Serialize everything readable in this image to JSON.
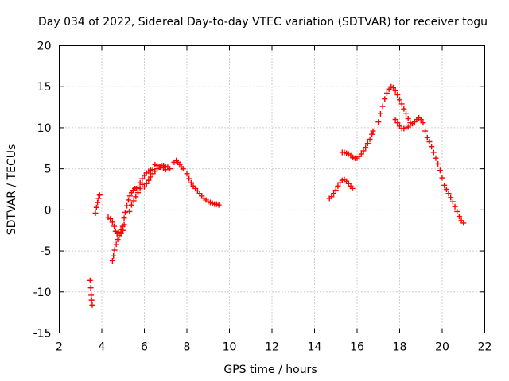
{
  "chart_data": {
    "type": "scatter",
    "title": "Day 034 of 2022, Sidereal Day-to-day VTEC variation (SDTVAR) for receiver togu",
    "xlabel": "GPS time / hours",
    "ylabel": "SDTVAR / TECUs",
    "xlim": [
      2,
      22
    ],
    "ylim": [
      -15,
      20
    ],
    "xticks": [
      2,
      4,
      6,
      8,
      10,
      12,
      14,
      16,
      18,
      20,
      22
    ],
    "yticks": [
      -15,
      -10,
      -5,
      0,
      5,
      10,
      15,
      20
    ],
    "xtick_labels": [
      "2",
      "4",
      "6",
      "8",
      "10",
      "12",
      "14",
      "16",
      "18",
      "20",
      "22"
    ],
    "ytick_labels": [
      "-15",
      "-10",
      "-5",
      "0",
      "5",
      "10",
      "15",
      "20"
    ],
    "grid": true,
    "marker": "+",
    "color": "#ff0000",
    "series": [
      {
        "name": "SDTVAR",
        "points": [
          [
            3.45,
            -8.6
          ],
          [
            3.48,
            -9.5
          ],
          [
            3.5,
            -10.4
          ],
          [
            3.52,
            -11.0
          ],
          [
            3.55,
            -11.6
          ],
          [
            3.7,
            -0.4
          ],
          [
            3.75,
            0.3
          ],
          [
            3.8,
            0.9
          ],
          [
            3.85,
            1.4
          ],
          [
            3.9,
            1.8
          ],
          [
            4.3,
            -0.9
          ],
          [
            4.4,
            -1.1
          ],
          [
            4.5,
            -1.5
          ],
          [
            4.58,
            -2.0
          ],
          [
            4.65,
            -2.6
          ],
          [
            4.72,
            -2.9
          ],
          [
            4.8,
            -2.7
          ],
          [
            4.9,
            -2.4
          ],
          [
            5.0,
            -2.5
          ],
          [
            5.05,
            -1.8
          ],
          [
            4.5,
            -6.2
          ],
          [
            4.55,
            -5.6
          ],
          [
            4.6,
            -4.9
          ],
          [
            4.68,
            -4.2
          ],
          [
            4.75,
            -3.6
          ],
          [
            4.82,
            -3.1
          ],
          [
            4.9,
            -2.9
          ],
          [
            4.98,
            -2.0
          ],
          [
            5.05,
            -1.0
          ],
          [
            5.1,
            -0.3
          ],
          [
            5.18,
            0.5
          ],
          [
            5.25,
            1.2
          ],
          [
            5.32,
            1.7
          ],
          [
            5.4,
            2.1
          ],
          [
            5.48,
            2.4
          ],
          [
            5.55,
            2.6
          ],
          [
            5.62,
            2.6
          ],
          [
            5.3,
            -0.2
          ],
          [
            5.4,
            0.6
          ],
          [
            5.5,
            1.1
          ],
          [
            5.6,
            1.6
          ],
          [
            5.7,
            2.1
          ],
          [
            5.8,
            2.6
          ],
          [
            5.9,
            3.1
          ],
          [
            5.7,
            2.7
          ],
          [
            5.8,
            3.3
          ],
          [
            5.9,
            3.8
          ],
          [
            6.0,
            4.2
          ],
          [
            6.1,
            4.5
          ],
          [
            6.2,
            4.7
          ],
          [
            6.3,
            4.8
          ],
          [
            6.4,
            4.9
          ],
          [
            6.0,
            2.8
          ],
          [
            6.1,
            3.2
          ],
          [
            6.2,
            3.6
          ],
          [
            6.3,
            4.0
          ],
          [
            6.4,
            4.4
          ],
          [
            6.5,
            4.7
          ],
          [
            6.6,
            5.0
          ],
          [
            6.7,
            5.2
          ],
          [
            6.8,
            5.4
          ],
          [
            6.9,
            5.4
          ],
          [
            7.0,
            5.3
          ],
          [
            7.1,
            5.2
          ],
          [
            7.2,
            5.0
          ],
          [
            6.5,
            5.5
          ],
          [
            6.6,
            5.4
          ],
          [
            6.75,
            5.2
          ],
          [
            6.9,
            5.1
          ],
          [
            7.0,
            4.9
          ],
          [
            7.4,
            5.8
          ],
          [
            7.5,
            6.0
          ],
          [
            7.58,
            5.8
          ],
          [
            7.66,
            5.5
          ],
          [
            7.74,
            5.2
          ],
          [
            7.82,
            5.0
          ],
          [
            8.0,
            4.4
          ],
          [
            8.1,
            3.8
          ],
          [
            8.2,
            3.3
          ],
          [
            8.3,
            2.9
          ],
          [
            8.4,
            2.6
          ],
          [
            8.5,
            2.3
          ],
          [
            8.6,
            2.0
          ],
          [
            8.7,
            1.7
          ],
          [
            8.8,
            1.4
          ],
          [
            8.9,
            1.2
          ],
          [
            9.0,
            1.0
          ],
          [
            9.1,
            0.9
          ],
          [
            9.2,
            0.8
          ],
          [
            9.3,
            0.7
          ],
          [
            9.4,
            0.7
          ],
          [
            9.5,
            0.6
          ],
          [
            14.7,
            1.4
          ],
          [
            14.8,
            1.6
          ],
          [
            14.9,
            2.0
          ],
          [
            15.0,
            2.4
          ],
          [
            15.1,
            2.9
          ],
          [
            15.2,
            3.3
          ],
          [
            15.3,
            3.6
          ],
          [
            15.4,
            3.7
          ],
          [
            15.5,
            3.5
          ],
          [
            15.6,
            3.2
          ],
          [
            15.7,
            2.9
          ],
          [
            15.78,
            2.6
          ],
          [
            15.3,
            7.0
          ],
          [
            15.4,
            7.0
          ],
          [
            15.5,
            6.9
          ],
          [
            15.6,
            6.8
          ],
          [
            15.7,
            6.6
          ],
          [
            15.8,
            6.4
          ],
          [
            15.9,
            6.3
          ],
          [
            16.0,
            6.3
          ],
          [
            16.1,
            6.5
          ],
          [
            16.2,
            6.8
          ],
          [
            16.3,
            7.2
          ],
          [
            16.4,
            7.6
          ],
          [
            16.5,
            8.1
          ],
          [
            16.6,
            8.6
          ],
          [
            16.7,
            9.2
          ],
          [
            16.75,
            9.6
          ],
          [
            17.0,
            10.7
          ],
          [
            17.1,
            11.7
          ],
          [
            17.2,
            12.6
          ],
          [
            17.3,
            13.5
          ],
          [
            17.4,
            14.2
          ],
          [
            17.5,
            14.7
          ],
          [
            17.6,
            15.0
          ],
          [
            17.7,
            14.9
          ],
          [
            17.8,
            14.5
          ],
          [
            17.9,
            14.0
          ],
          [
            18.0,
            13.4
          ],
          [
            18.1,
            12.9
          ],
          [
            18.2,
            12.3
          ],
          [
            18.3,
            11.7
          ],
          [
            18.4,
            11.1
          ],
          [
            18.5,
            10.6
          ],
          [
            17.8,
            11.0
          ],
          [
            17.9,
            10.6
          ],
          [
            18.0,
            10.2
          ],
          [
            18.1,
            9.9
          ],
          [
            18.2,
            9.9
          ],
          [
            18.3,
            10.0
          ],
          [
            18.4,
            10.1
          ],
          [
            18.5,
            10.3
          ],
          [
            18.6,
            10.5
          ],
          [
            18.7,
            10.7
          ],
          [
            18.8,
            11.0
          ],
          [
            18.9,
            11.2
          ],
          [
            19.0,
            11.0
          ],
          [
            19.1,
            10.6
          ],
          [
            19.2,
            9.6
          ],
          [
            19.3,
            8.8
          ],
          [
            19.4,
            8.3
          ],
          [
            19.5,
            7.7
          ],
          [
            19.6,
            7.0
          ],
          [
            19.7,
            6.3
          ],
          [
            19.8,
            5.6
          ],
          [
            19.9,
            4.8
          ],
          [
            20.0,
            3.9
          ],
          [
            20.1,
            3.0
          ],
          [
            20.2,
            2.5
          ],
          [
            20.3,
            2.0
          ],
          [
            20.4,
            1.5
          ],
          [
            20.5,
            1.0
          ],
          [
            20.6,
            0.4
          ],
          [
            20.7,
            -0.2
          ],
          [
            20.8,
            -0.8
          ],
          [
            20.9,
            -1.3
          ],
          [
            21.0,
            -1.6
          ]
        ]
      }
    ]
  }
}
